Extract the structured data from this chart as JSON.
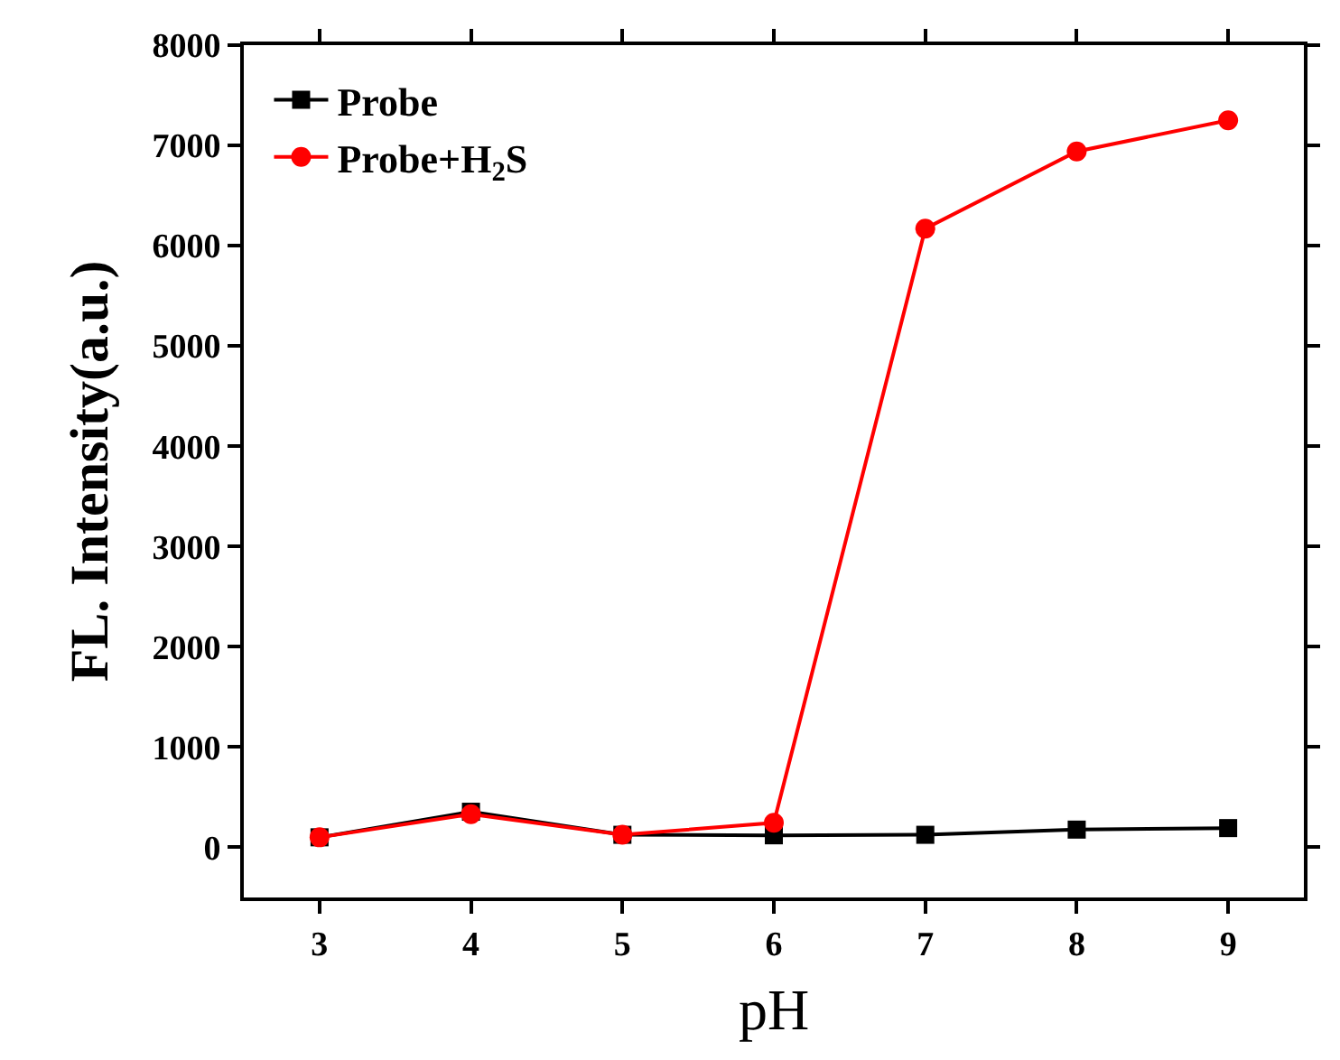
{
  "chart_data": {
    "type": "line",
    "xlabel": "pH",
    "ylabel": "FL. Intensity(a.u.)",
    "x": [
      3,
      4,
      5,
      6,
      7,
      8,
      9
    ],
    "series": [
      {
        "name": "Probe",
        "color": "#000000",
        "marker": "square",
        "values": [
          100,
          355,
          125,
          120,
          125,
          177,
          192
        ]
      },
      {
        "name": "Probe+H$_{2}$S",
        "color": "#ff0000",
        "marker": "circle",
        "values": [
          100,
          330,
          125,
          245,
          6170,
          6940,
          7250
        ]
      }
    ],
    "xlim": [
      2.5,
      9.5
    ],
    "ylim": [
      -500,
      8000
    ],
    "xticks": [
      3,
      4,
      5,
      6,
      7,
      8,
      9
    ],
    "yticks": [
      0,
      1000,
      2000,
      3000,
      4000,
      5000,
      6000,
      7000,
      8000
    ],
    "grid": false,
    "legend": "top left",
    "line_style": "solid"
  }
}
